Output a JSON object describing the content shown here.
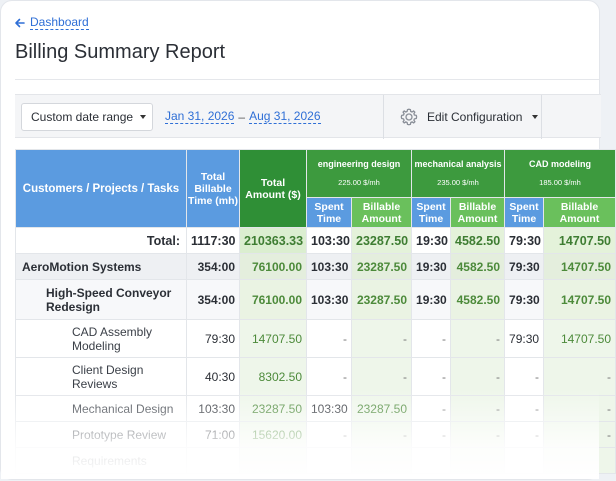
{
  "nav": {
    "back_label": "Dashboard"
  },
  "page": {
    "title": "Billing Summary Report"
  },
  "toolbar": {
    "date_mode": "Custom date range",
    "date_start": "Jan 31, 2026",
    "date_sep": "–",
    "date_end": "Aug 31, 2026",
    "config_label": "Edit Configuration"
  },
  "table": {
    "headers": {
      "name": "Customers / Projects / Tasks",
      "billable_time": "Total Billable Time (mh)",
      "total_amount": "Total Amount ($)",
      "spent_time": "Spent Time",
      "billable_amount": "Billable Amount"
    },
    "groups": [
      {
        "name": "engineering design",
        "rate": "225.00 $/mh"
      },
      {
        "name": "mechanical analysis",
        "rate": "235.00 $/mh"
      },
      {
        "name": "CAD modeling",
        "rate": "185.00 $/mh"
      }
    ],
    "total": {
      "label": "Total:",
      "billable_time": "1117:30",
      "total_amount": "210363.33",
      "g1_time": "103:30",
      "g1_amount": "23287.50",
      "g2_time": "19:30",
      "g2_amount": "4582.50",
      "g3_time": "79:30",
      "g3_amount": "14707.50"
    },
    "rows": [
      {
        "name": "AeroMotion Systems",
        "billable_time": "354:00",
        "total_amount": "76100.00",
        "g1_time": "103:30",
        "g1_amount": "23287.50",
        "g2_time": "19:30",
        "g2_amount": "4582.50",
        "g3_time": "79:30",
        "g3_amount": "14707.50"
      },
      {
        "name": "High-Speed Conveyor Redesign",
        "billable_time": "354:00",
        "total_amount": "76100.00",
        "g1_time": "103:30",
        "g1_amount": "23287.50",
        "g2_time": "19:30",
        "g2_amount": "4582.50",
        "g3_time": "79:30",
        "g3_amount": "14707.50"
      },
      {
        "name": "CAD Assembly Modeling",
        "billable_time": "79:30",
        "total_amount": "14707.50",
        "g1_time": "-",
        "g1_amount": "-",
        "g2_time": "-",
        "g2_amount": "-",
        "g3_time": "79:30",
        "g3_amount": "14707.50"
      },
      {
        "name": "Client Design Reviews",
        "billable_time": "40:30",
        "total_amount": "8302.50",
        "g1_time": "-",
        "g1_amount": "-",
        "g2_time": "-",
        "g2_amount": "-",
        "g3_time": "-",
        "g3_amount": "-"
      },
      {
        "name": "Mechanical Design",
        "billable_time": "103:30",
        "total_amount": "23287.50",
        "g1_time": "103:30",
        "g1_amount": "23287.50",
        "g2_time": "-",
        "g2_amount": "-",
        "g3_time": "-",
        "g3_amount": "-"
      },
      {
        "name": "Prototype Review",
        "billable_time": "71:00",
        "total_amount": "15620.00",
        "g1_time": "-",
        "g1_amount": "-",
        "g2_time": "-",
        "g2_amount": "-",
        "g3_time": "-",
        "g3_amount": "-"
      },
      {
        "name": "Requirements",
        "billable_time": "",
        "total_amount": "",
        "g1_time": "",
        "g1_amount": "",
        "g2_time": "",
        "g2_amount": "",
        "g3_time": "",
        "g3_amount": ""
      }
    ]
  },
  "icons": {
    "back": "arrow-left-icon",
    "config": "gear-icon"
  },
  "colors": {
    "accent_blue": "#5b9be0",
    "header_green_dark": "#2f8f36",
    "header_green_light": "#6ac05c",
    "link": "#2f6fd6"
  }
}
